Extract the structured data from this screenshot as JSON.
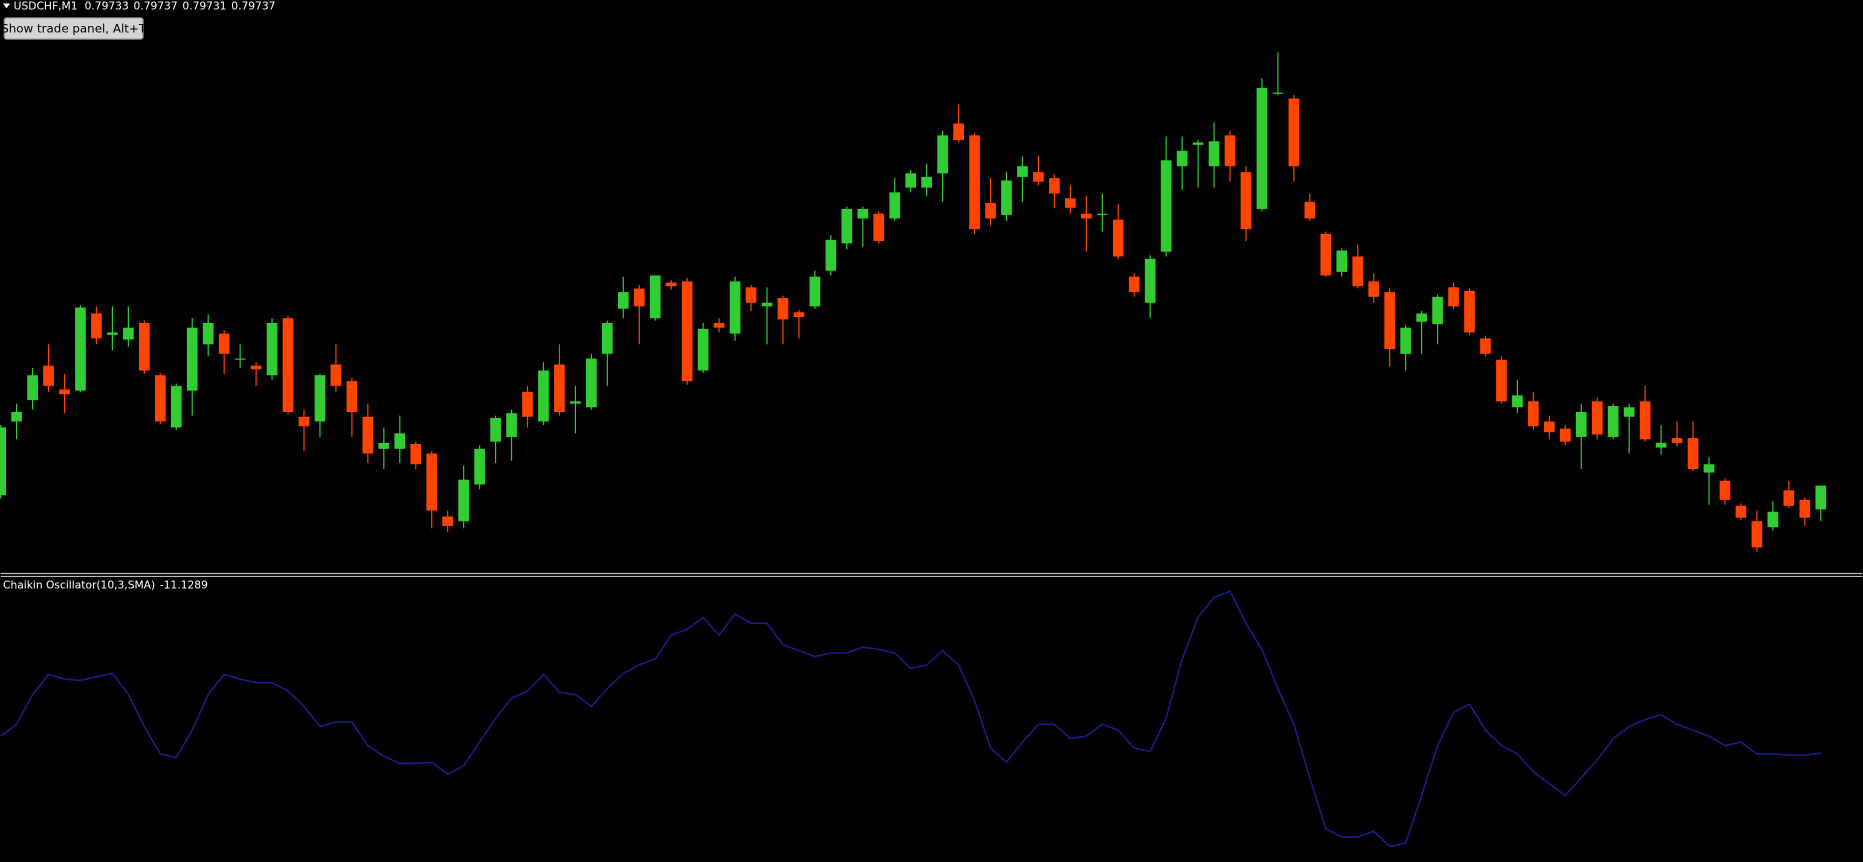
{
  "chart_data": [
    {
      "type": "candlestick",
      "symbol": "USDCHF,M1",
      "up_color": "#32cd32",
      "down_color": "#ff4500",
      "ylim": [
        0.797224,
        0.798188
      ],
      "candles": [
        [
          0.797354,
          0.797472,
          0.797348,
          0.797468
        ],
        [
          0.797478,
          0.797508,
          0.797448,
          0.797494
        ],
        [
          0.797514,
          0.797568,
          0.797498,
          0.797556
        ],
        [
          0.797572,
          0.797608,
          0.797528,
          0.797538
        ],
        [
          0.797532,
          0.797558,
          0.797492,
          0.797524
        ],
        [
          0.79753,
          0.797674,
          0.797528,
          0.79767
        ],
        [
          0.79766,
          0.797672,
          0.797608,
          0.797618
        ],
        [
          0.797624,
          0.797672,
          0.797598,
          0.797628
        ],
        [
          0.797616,
          0.797672,
          0.797604,
          0.797636
        ],
        [
          0.797644,
          0.797648,
          0.797558,
          0.797564
        ],
        [
          0.797556,
          0.79756,
          0.797474,
          0.797478
        ],
        [
          0.797468,
          0.797542,
          0.797464,
          0.797538
        ],
        [
          0.79753,
          0.797652,
          0.797488,
          0.797636
        ],
        [
          0.797608,
          0.797658,
          0.797588,
          0.797644
        ],
        [
          0.797626,
          0.797632,
          0.797558,
          0.797592
        ],
        [
          0.797582,
          0.797608,
          0.797568,
          0.797584
        ],
        [
          0.797572,
          0.797578,
          0.797538,
          0.797566
        ],
        [
          0.797556,
          0.797652,
          0.797548,
          0.797644
        ],
        [
          0.797652,
          0.797656,
          0.79749,
          0.797494
        ],
        [
          0.797486,
          0.797498,
          0.797428,
          0.79747
        ],
        [
          0.797478,
          0.797558,
          0.797452,
          0.797556
        ],
        [
          0.797574,
          0.797608,
          0.797528,
          0.797538
        ],
        [
          0.797546,
          0.797552,
          0.797452,
          0.797494
        ],
        [
          0.797486,
          0.797508,
          0.797408,
          0.797424
        ],
        [
          0.797432,
          0.797468,
          0.797398,
          0.797442
        ],
        [
          0.797432,
          0.797488,
          0.797408,
          0.797458
        ],
        [
          0.79744,
          0.797444,
          0.797398,
          0.797406
        ],
        [
          0.797424,
          0.797428,
          0.797298,
          0.797328
        ],
        [
          0.797318,
          0.797328,
          0.797292,
          0.797302
        ],
        [
          0.79731,
          0.797404,
          0.797298,
          0.79738
        ],
        [
          0.797372,
          0.797438,
          0.797364,
          0.797432
        ],
        [
          0.797444,
          0.797488,
          0.797408,
          0.797484
        ],
        [
          0.797452,
          0.797498,
          0.797412,
          0.797492
        ],
        [
          0.797528,
          0.797538,
          0.797468,
          0.797486
        ],
        [
          0.797478,
          0.797578,
          0.797472,
          0.797564
        ],
        [
          0.797574,
          0.797608,
          0.797488,
          0.797494
        ],
        [
          0.797508,
          0.797538,
          0.797458,
          0.797512
        ],
        [
          0.797502,
          0.797592,
          0.797498,
          0.797584
        ],
        [
          0.797592,
          0.797648,
          0.797538,
          0.797644
        ],
        [
          0.797668,
          0.797722,
          0.797652,
          0.797696
        ],
        [
          0.797702,
          0.797708,
          0.797608,
          0.797672
        ],
        [
          0.797652,
          0.797724,
          0.797648,
          0.797724
        ],
        [
          0.797712,
          0.797716,
          0.7977,
          0.797706
        ],
        [
          0.797714,
          0.79772,
          0.79754,
          0.797546
        ],
        [
          0.797564,
          0.797644,
          0.79756,
          0.797634
        ],
        [
          0.797644,
          0.797652,
          0.797628,
          0.797636
        ],
        [
          0.797626,
          0.797722,
          0.797614,
          0.797714
        ],
        [
          0.797704,
          0.797708,
          0.797664,
          0.797678
        ],
        [
          0.797672,
          0.797704,
          0.797608,
          0.797678
        ],
        [
          0.797686,
          0.79769,
          0.797608,
          0.79765
        ],
        [
          0.797662,
          0.797666,
          0.797618,
          0.797654
        ],
        [
          0.797672,
          0.797732,
          0.797668,
          0.797722
        ],
        [
          0.797732,
          0.797792,
          0.797724,
          0.797784
        ],
        [
          0.797778,
          0.79784,
          0.797768,
          0.797836
        ],
        [
          0.79782,
          0.79784,
          0.797772,
          0.797836
        ],
        [
          0.797828,
          0.797832,
          0.797778,
          0.797782
        ],
        [
          0.79782,
          0.797888,
          0.797816,
          0.797864
        ],
        [
          0.797872,
          0.797902,
          0.797864,
          0.797896
        ],
        [
          0.797872,
          0.797912,
          0.797858,
          0.79789
        ],
        [
          0.797896,
          0.797968,
          0.797848,
          0.79796
        ],
        [
          0.79798,
          0.798012,
          0.797948,
          0.797952
        ],
        [
          0.79796,
          0.797964,
          0.797794,
          0.797802
        ],
        [
          0.797846,
          0.797888,
          0.797808,
          0.79782
        ],
        [
          0.797826,
          0.797898,
          0.797816,
          0.797884
        ],
        [
          0.79789,
          0.797924,
          0.797848,
          0.797908
        ],
        [
          0.797898,
          0.797926,
          0.797876,
          0.797882
        ],
        [
          0.797888,
          0.797894,
          0.797838,
          0.797862
        ],
        [
          0.797854,
          0.797876,
          0.797828,
          0.797838
        ],
        [
          0.797828,
          0.797858,
          0.797764,
          0.79782
        ],
        [
          0.797826,
          0.797862,
          0.797798,
          0.797828
        ],
        [
          0.797818,
          0.797844,
          0.797752,
          0.797756
        ],
        [
          0.797722,
          0.797728,
          0.797688,
          0.797696
        ],
        [
          0.797678,
          0.797758,
          0.797652,
          0.797752
        ],
        [
          0.797764,
          0.797958,
          0.797756,
          0.797918
        ],
        [
          0.797908,
          0.797958,
          0.797868,
          0.797934
        ],
        [
          0.797944,
          0.797952,
          0.797872,
          0.797948
        ],
        [
          0.797908,
          0.797982,
          0.797872,
          0.79795
        ],
        [
          0.79796,
          0.797968,
          0.797882,
          0.797908
        ],
        [
          0.797898,
          0.797908,
          0.797782,
          0.797802
        ],
        [
          0.797836,
          0.798056,
          0.797832,
          0.79804
        ],
        [
          0.79803,
          0.7981,
          0.798028,
          0.798032
        ],
        [
          0.798022,
          0.798028,
          0.797882,
          0.797908
        ],
        [
          0.797848,
          0.797862,
          0.797816,
          0.79782
        ],
        [
          0.797794,
          0.797798,
          0.797722,
          0.797724
        ],
        [
          0.79773,
          0.79777,
          0.797722,
          0.797766
        ],
        [
          0.797756,
          0.797776,
          0.797702,
          0.797706
        ],
        [
          0.797714,
          0.797728,
          0.797678,
          0.797688
        ],
        [
          0.797696,
          0.797702,
          0.79757,
          0.7976
        ],
        [
          0.797592,
          0.79764,
          0.797564,
          0.797636
        ],
        [
          0.797646,
          0.797664,
          0.797592,
          0.79766
        ],
        [
          0.797642,
          0.797692,
          0.797608,
          0.797688
        ],
        [
          0.797704,
          0.797712,
          0.797668,
          0.797672
        ],
        [
          0.797698,
          0.797702,
          0.797624,
          0.797628
        ],
        [
          0.797618,
          0.797622,
          0.797588,
          0.797592
        ],
        [
          0.797582,
          0.797588,
          0.797508,
          0.797512
        ],
        [
          0.797502,
          0.797548,
          0.797492,
          0.797522
        ],
        [
          0.797512,
          0.797528,
          0.797464,
          0.79747
        ],
        [
          0.797478,
          0.797488,
          0.797448,
          0.79746
        ],
        [
          0.797466,
          0.797472,
          0.797438,
          0.797444
        ],
        [
          0.797452,
          0.797508,
          0.797398,
          0.797494
        ],
        [
          0.797512,
          0.797518,
          0.797448,
          0.797456
        ],
        [
          0.797452,
          0.797508,
          0.797448,
          0.797504
        ],
        [
          0.797486,
          0.797508,
          0.797424,
          0.797502
        ],
        [
          0.797512,
          0.797538,
          0.797444,
          0.797448
        ],
        [
          0.797434,
          0.797472,
          0.797422,
          0.797442
        ],
        [
          0.79745,
          0.797478,
          0.797436,
          0.797442
        ],
        [
          0.79745,
          0.797478,
          0.797394,
          0.797398
        ],
        [
          0.797392,
          0.797418,
          0.797338,
          0.797406
        ],
        [
          0.797378,
          0.797382,
          0.797338,
          0.797346
        ],
        [
          0.797336,
          0.79734,
          0.797312,
          0.797316
        ],
        [
          0.79731,
          0.797328,
          0.797258,
          0.797266
        ],
        [
          0.7973,
          0.797344,
          0.797294,
          0.797326
        ],
        [
          0.797362,
          0.797378,
          0.797332,
          0.797336
        ],
        [
          0.797346,
          0.79735,
          0.797302,
          0.797316
        ],
        [
          0.79733,
          0.79737,
          0.79731,
          0.79737
        ]
      ]
    },
    {
      "type": "line",
      "title": "Chaikin Oscillator(10,3,SMA)",
      "color": "#1c1c8c",
      "ylim": [
        -57,
        62.5
      ],
      "values": [
        -4,
        1,
        13.5,
        22,
        20,
        19.5,
        21,
        22.5,
        13.5,
        0,
        -11.5,
        -13,
        -1.5,
        13.5,
        22,
        20,
        18.5,
        18.5,
        15,
        8.5,
        0,
        2,
        2,
        -8,
        -12.5,
        -15.5,
        -15.5,
        -15,
        -20,
        -16.5,
        -6.5,
        3.5,
        12,
        15,
        22,
        14.5,
        13.5,
        8.5,
        16,
        22.5,
        26,
        28.5,
        38.5,
        41,
        46,
        38.5,
        47.5,
        43.5,
        43.5,
        34.5,
        32,
        29.5,
        31,
        31,
        33.5,
        32.5,
        31,
        24.5,
        26,
        32,
        26,
        11,
        -9,
        -15,
        -6.5,
        1,
        1,
        -5,
        -4,
        1,
        -1.5,
        -9,
        -10.5,
        3.5,
        28.5,
        46,
        54.5,
        57,
        43.5,
        32.5,
        16,
        1,
        -21.5,
        -43,
        -46.5,
        -46.5,
        -44,
        -50.5,
        -49,
        -29,
        -8,
        6,
        9.5,
        -1.5,
        -8,
        -11.5,
        -19,
        -24,
        -29,
        -21.5,
        -14,
        -5,
        0,
        3,
        5,
        1,
        -1.5,
        -4,
        -8,
        -6.5,
        -11.5,
        -11.5,
        -12,
        -12,
        -11.1289
      ]
    }
  ],
  "toolbar": {
    "button": "Show trade panel, Alt+T"
  }
}
